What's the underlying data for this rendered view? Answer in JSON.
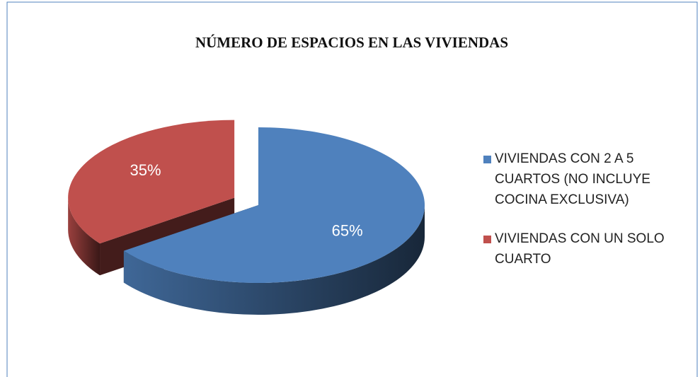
{
  "chart_data": {
    "type": "pie",
    "title": "NÚMERO DE ESPACIOS EN LAS VIVIENDAS",
    "categories": [
      "VIVIENDAS CON 2 A 5 CUARTOS (NO INCLUYE COCINA EXCLUSIVA)",
      "VIVIENDAS CON UN SOLO CUARTO"
    ],
    "values": [
      65,
      35
    ],
    "value_labels": [
      "65%",
      "35%"
    ],
    "colors": [
      "#4f81bd",
      "#c0504d"
    ],
    "legend": "right"
  }
}
